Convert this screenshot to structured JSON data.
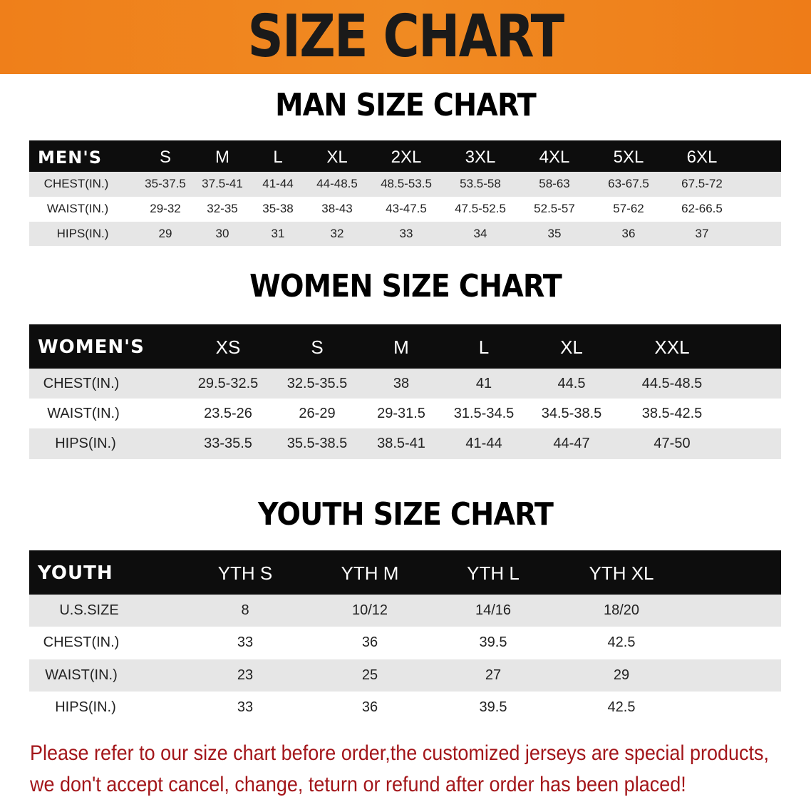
{
  "banner": {
    "title": "SIZE CHART",
    "color": "#ef7f1a"
  },
  "men": {
    "heading": "MAN SIZE CHART",
    "header": [
      "MEN'S",
      "S",
      "M",
      "L",
      "XL",
      "2XL",
      "3XL",
      "4XL",
      "5XL",
      "6XL"
    ],
    "rows": [
      [
        "CHEST(IN.)",
        "35-37.5",
        "37.5-41",
        "41-44",
        "44-48.5",
        "48.5-53.5",
        "53.5-58",
        "58-63",
        "63-67.5",
        "67.5-72"
      ],
      [
        "WAIST(IN.)",
        "29-32",
        "32-35",
        "35-38",
        "38-43",
        "43-47.5",
        "47.5-52.5",
        "52.5-57",
        "57-62",
        "62-66.5"
      ],
      [
        "HIPS(IN.)",
        "29",
        "30",
        "31",
        "32",
        "33",
        "34",
        "35",
        "36",
        "37"
      ]
    ]
  },
  "women": {
    "heading": "WOMEN SIZE CHART",
    "header": [
      "WOMEN'S",
      "XS",
      "S",
      "M",
      "L",
      "XL",
      "XXL"
    ],
    "rows": [
      [
        "CHEST(IN.)",
        "29.5-32.5",
        "32.5-35.5",
        "38",
        "41",
        "44.5",
        "44.5-48.5"
      ],
      [
        "WAIST(IN.)",
        "23.5-26",
        "26-29",
        "29-31.5",
        "31.5-34.5",
        "34.5-38.5",
        "38.5-42.5"
      ],
      [
        "HIPS(IN.)",
        "33-35.5",
        "35.5-38.5",
        "38.5-41",
        "41-44",
        "44-47",
        "47-50"
      ]
    ]
  },
  "youth": {
    "heading": "YOUTH SIZE CHART",
    "header": [
      "YOUTH",
      "YTH S",
      "YTH M",
      "YTH L",
      "YTH XL"
    ],
    "rows": [
      [
        "U.S.SIZE",
        "8",
        "10/12",
        "14/16",
        "18/20"
      ],
      [
        "CHEST(IN.)",
        "33",
        "36",
        "39.5",
        "42.5"
      ],
      [
        "WAIST(IN.)",
        "23",
        "25",
        "27",
        "29"
      ],
      [
        "HIPS(IN.)",
        "33",
        "36",
        "39.5",
        "42.5"
      ]
    ]
  },
  "notice": {
    "line1": "Please refer to our size chart before order,the customized jerseys are special products,",
    "line2": "we don't accept cancel, change, teturn or refund after order has been placed!",
    "color": "#a3161a"
  }
}
